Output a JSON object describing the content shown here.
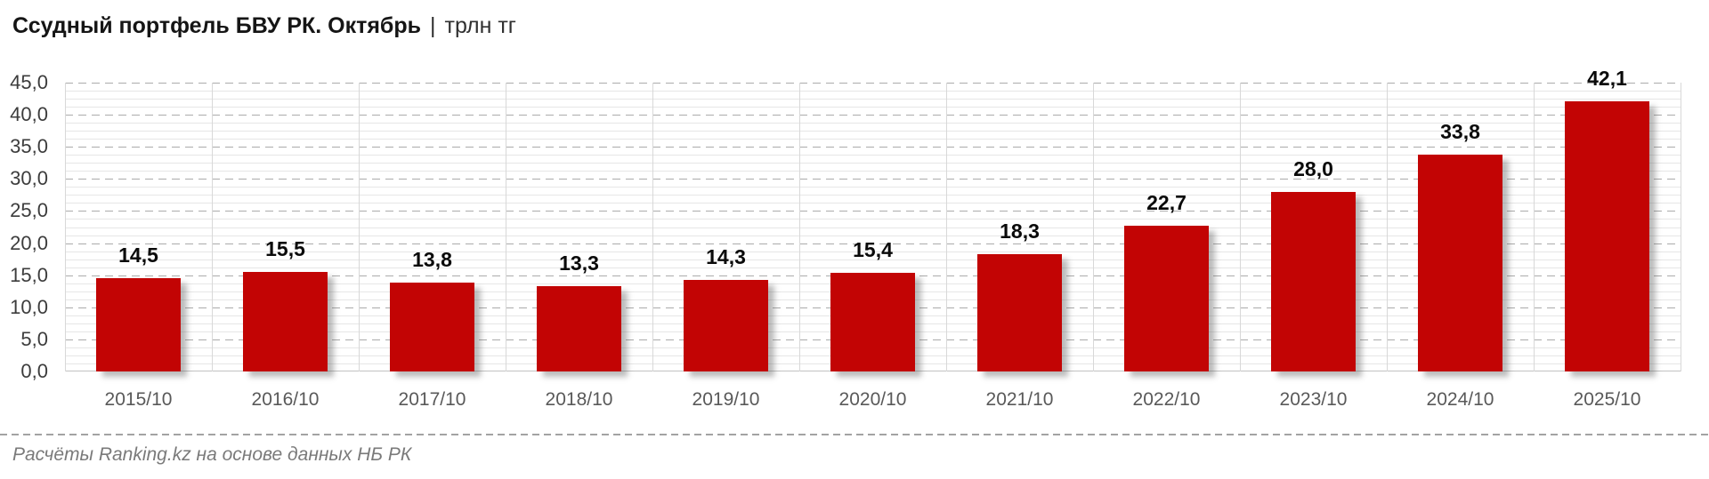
{
  "title": {
    "main": "Ссудный портфель БВУ РК. Октябрь",
    "separator": "|",
    "unit": "трлн тг"
  },
  "chart_data": {
    "type": "bar",
    "title": "Ссудный портфель БВУ РК. Октябрь | трлн тг",
    "categories": [
      "2015/10",
      "2016/10",
      "2017/10",
      "2018/10",
      "2019/10",
      "2020/10",
      "2021/10",
      "2022/10",
      "2023/10",
      "2024/10",
      "2025/10"
    ],
    "values": [
      14.5,
      15.5,
      13.8,
      13.3,
      14.3,
      15.4,
      18.3,
      22.7,
      28.0,
      33.8,
      42.1
    ],
    "value_labels": [
      "14,5",
      "15,5",
      "13,8",
      "13,3",
      "14,3",
      "15,4",
      "18,3",
      "22,7",
      "28,0",
      "33,8",
      "42,1"
    ],
    "xlabel": "",
    "ylabel": "",
    "ylim": [
      0,
      45
    ],
    "y_major_unit": 5,
    "y_minor_unit": 1.25,
    "y_tick_labels": [
      "0,0",
      "5,0",
      "10,0",
      "15,0",
      "20,0",
      "25,0",
      "30,0",
      "35,0",
      "40,0",
      "45,0"
    ],
    "grid": "horizontal major dashed, horizontal minor solid, vertical category separators",
    "legend": "none",
    "bar_color": "#c20404"
  },
  "footer": {
    "source": "Расчёты Ranking.kz на основе данных НБ РК"
  },
  "colors": {
    "bar": "#c20404",
    "value_label": "#0a0a0a",
    "y_tick_label": "#3c3c3c",
    "x_tick_label": "#595959",
    "grid_major": "#ababab",
    "grid_minor": "#e6e6e6",
    "grid_vertical": "#d8d8d8",
    "divider": "#a3a3a3",
    "footer_text": "#7a7a7a",
    "background": "#ffffff"
  }
}
